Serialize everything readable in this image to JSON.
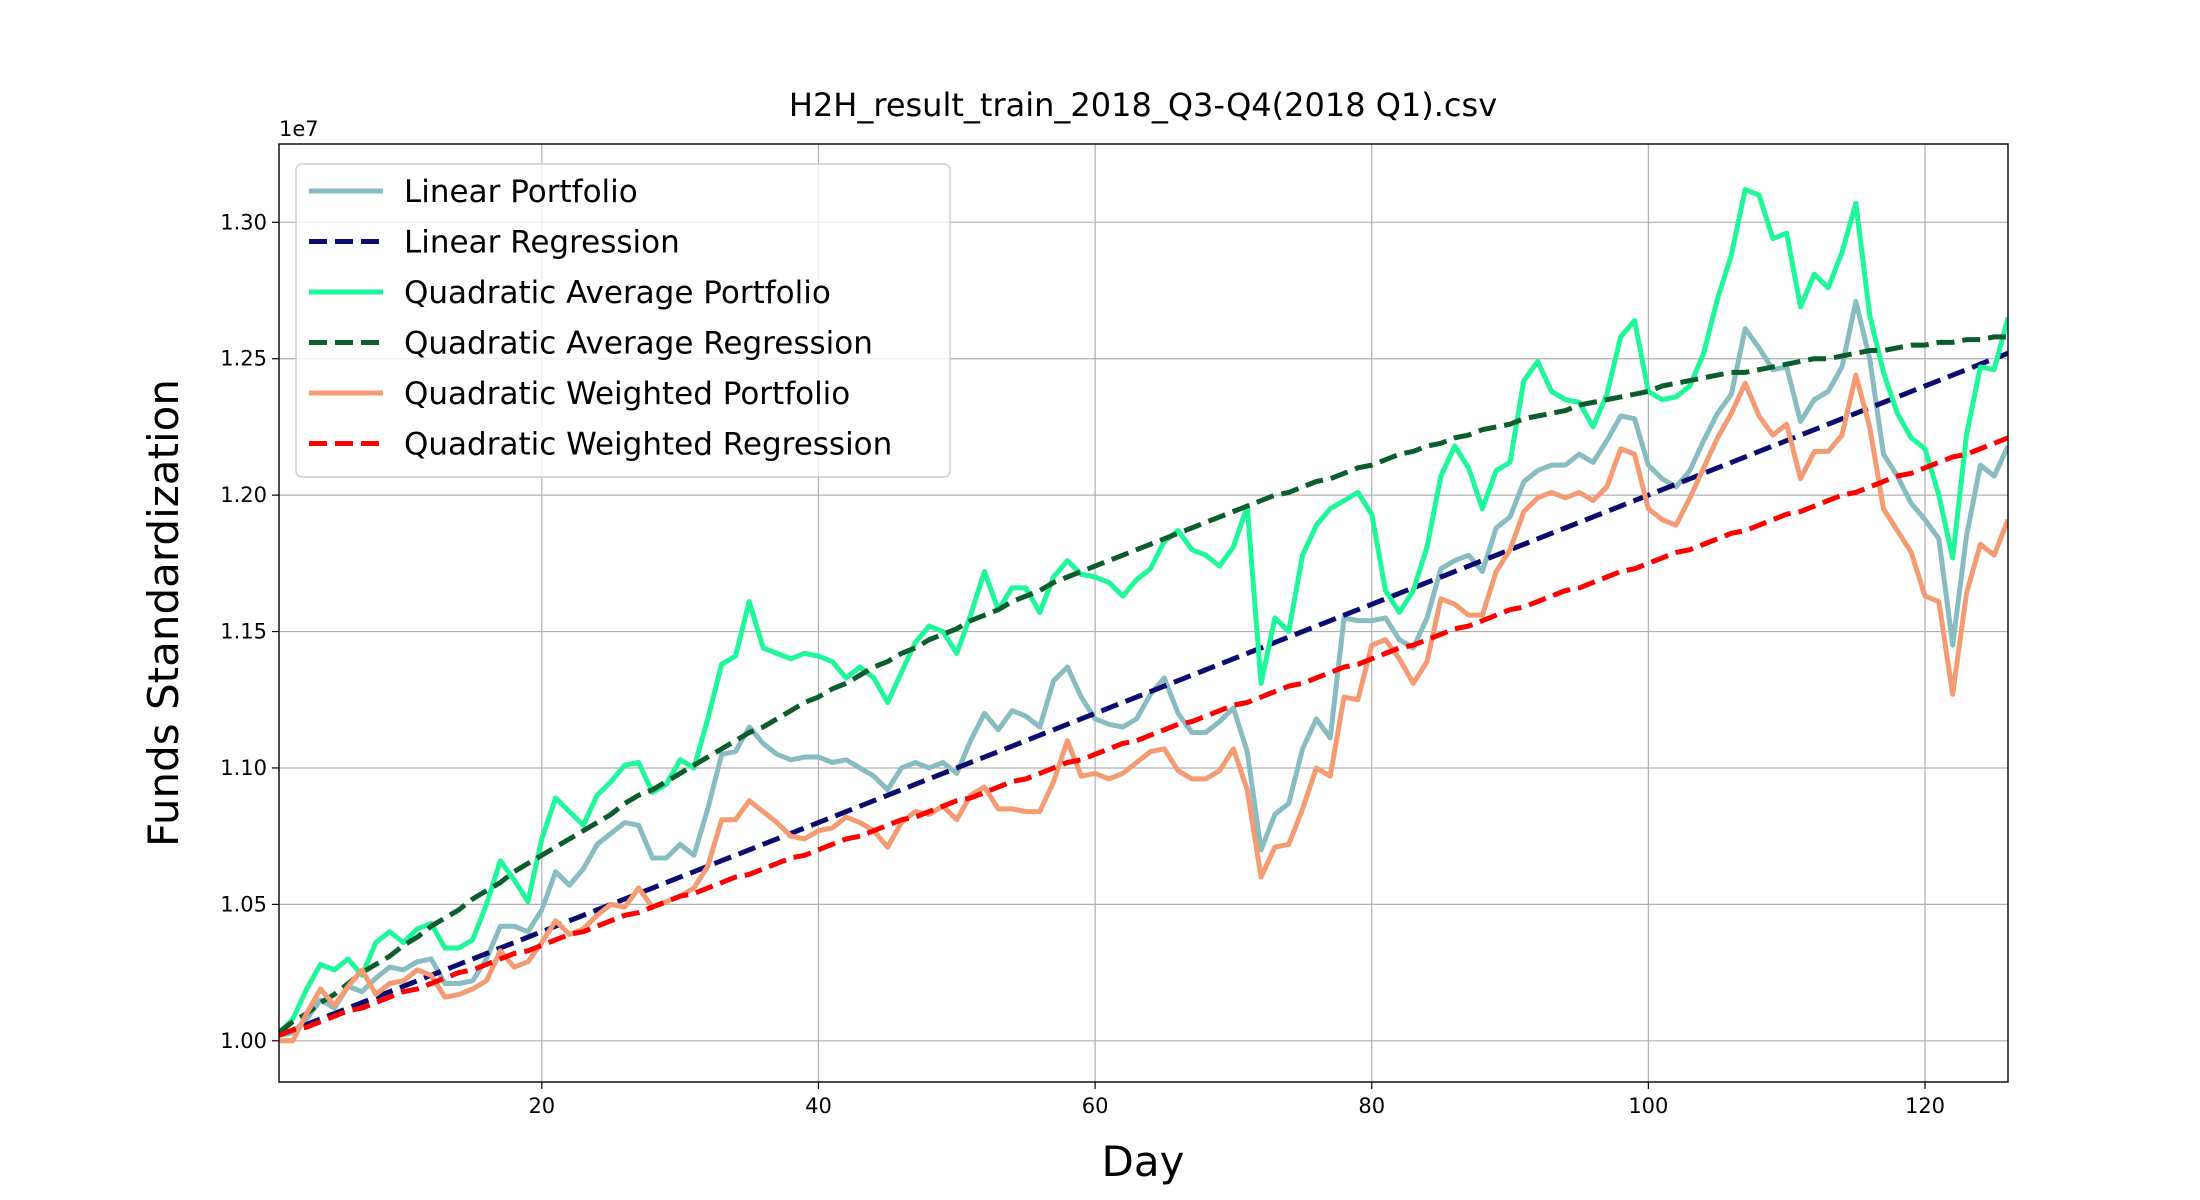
{
  "chart_data": {
    "type": "line",
    "title": "H2H_result_train_2018_Q3-Q4(2018 Q1).csv",
    "x_label": "Day",
    "y_label": "Funds Standardization",
    "y_offset_label": "1e7",
    "x": [
      1,
      2,
      3,
      4,
      5,
      6,
      7,
      8,
      9,
      10,
      11,
      12,
      13,
      14,
      15,
      16,
      17,
      18,
      19,
      20,
      21,
      22,
      23,
      24,
      25,
      26,
      27,
      28,
      29,
      30,
      31,
      32,
      33,
      34,
      35,
      36,
      37,
      38,
      39,
      40,
      41,
      42,
      43,
      44,
      45,
      46,
      47,
      48,
      49,
      50,
      51,
      52,
      53,
      54,
      55,
      56,
      57,
      58,
      59,
      60,
      61,
      62,
      63,
      64,
      65,
      66,
      67,
      68,
      69,
      70,
      71,
      72,
      73,
      74,
      75,
      76,
      77,
      78,
      79,
      80,
      81,
      82,
      83,
      84,
      85,
      86,
      87,
      88,
      89,
      90,
      91,
      92,
      93,
      94,
      95,
      96,
      97,
      98,
      99,
      100,
      101,
      102,
      103,
      104,
      105,
      106,
      107,
      108,
      109,
      110,
      111,
      112,
      113,
      114,
      115,
      116,
      117,
      118,
      119,
      120,
      121,
      122,
      123,
      124,
      125,
      126
    ],
    "xlim": [
      1,
      126
    ],
    "xticks": [
      20,
      40,
      60,
      80,
      100,
      120
    ],
    "ylim": [
      0.9849,
      1.3287
    ],
    "yticks": [
      {
        "value": 1,
        "label": "1.00"
      },
      {
        "value": 1.05,
        "label": "1.05"
      },
      {
        "value": 1.1,
        "label": "1.10"
      },
      {
        "value": 1.15,
        "label": "1.15"
      },
      {
        "value": 1.2,
        "label": "1.20"
      },
      {
        "value": 1.25,
        "label": "1.25"
      },
      {
        "value": 1.3,
        "label": "1.30"
      }
    ],
    "grid": true,
    "legend": "upper left",
    "series": [
      {
        "name": "Linear Portfolio",
        "color": "#88bcc0",
        "dashed": false,
        "values": [
          1.002,
          1.003,
          1.008,
          1.015,
          1.012,
          1.02,
          1.018,
          1.023,
          1.027,
          1.026,
          1.029,
          1.03,
          1.021,
          1.021,
          1.022,
          1.03,
          1.042,
          1.042,
          1.04,
          1.048,
          1.062,
          1.057,
          1.063,
          1.072,
          1.076,
          1.08,
          1.079,
          1.067,
          1.067,
          1.072,
          1.068,
          1.085,
          1.105,
          1.106,
          1.115,
          1.109,
          1.105,
          1.103,
          1.104,
          1.104,
          1.102,
          1.103,
          1.1,
          1.097,
          1.092,
          1.1,
          1.102,
          1.1,
          1.102,
          1.098,
          1.11,
          1.12,
          1.114,
          1.121,
          1.119,
          1.115,
          1.132,
          1.137,
          1.126,
          1.118,
          1.116,
          1.115,
          1.118,
          1.127,
          1.133,
          1.12,
          1.113,
          1.113,
          1.117,
          1.122,
          1.106,
          1.07,
          1.083,
          1.087,
          1.107,
          1.118,
          1.111,
          1.155,
          1.154,
          1.154,
          1.155,
          1.147,
          1.144,
          1.155,
          1.173,
          1.176,
          1.178,
          1.172,
          1.188,
          1.192,
          1.205,
          1.209,
          1.211,
          1.211,
          1.215,
          1.212,
          1.22,
          1.229,
          1.228,
          1.211,
          1.206,
          1.203,
          1.209,
          1.22,
          1.23,
          1.237,
          1.261,
          1.254,
          1.246,
          1.247,
          1.227,
          1.235,
          1.238,
          1.247,
          1.271,
          1.25,
          1.215,
          1.207,
          1.197,
          1.191,
          1.184,
          1.145,
          1.185,
          1.211,
          1.207,
          1.218
        ]
      },
      {
        "name": "Linear Regression",
        "color": "#0c0c70",
        "dashed": true,
        "values": [
          1.002,
          1.004,
          1.006,
          1.008,
          1.01,
          1.012,
          1.014,
          1.016,
          1.018,
          1.02,
          1.022,
          1.024,
          1.026,
          1.028,
          1.03,
          1.032,
          1.034,
          1.036,
          1.038,
          1.04,
          1.042,
          1.044,
          1.046,
          1.048,
          1.05,
          1.052,
          1.054,
          1.056,
          1.058,
          1.06,
          1.062,
          1.064,
          1.066,
          1.068,
          1.07,
          1.072,
          1.074,
          1.076,
          1.078,
          1.08,
          1.082,
          1.084,
          1.086,
          1.088,
          1.09,
          1.092,
          1.094,
          1.096,
          1.098,
          1.1,
          1.102,
          1.104,
          1.106,
          1.108,
          1.11,
          1.112,
          1.114,
          1.116,
          1.118,
          1.12,
          1.122,
          1.124,
          1.126,
          1.128,
          1.13,
          1.132,
          1.134,
          1.136,
          1.138,
          1.14,
          1.142,
          1.144,
          1.146,
          1.148,
          1.15,
          1.152,
          1.154,
          1.156,
          1.158,
          1.16,
          1.162,
          1.164,
          1.166,
          1.168,
          1.17,
          1.172,
          1.174,
          1.176,
          1.178,
          1.18,
          1.182,
          1.184,
          1.186,
          1.188,
          1.19,
          1.192,
          1.194,
          1.196,
          1.198,
          1.2,
          1.202,
          1.204,
          1.206,
          1.208,
          1.21,
          1.212,
          1.214,
          1.216,
          1.218,
          1.22,
          1.222,
          1.224,
          1.226,
          1.228,
          1.23,
          1.232,
          1.234,
          1.236,
          1.238,
          1.24,
          1.242,
          1.244,
          1.246,
          1.248,
          1.25,
          1.252
        ]
      },
      {
        "name": "Quadratic Average Portfolio",
        "color": "#1ef79a",
        "dashed": false,
        "values": [
          1.003,
          1.008,
          1.019,
          1.028,
          1.026,
          1.03,
          1.024,
          1.036,
          1.04,
          1.036,
          1.041,
          1.043,
          1.034,
          1.034,
          1.037,
          1.05,
          1.066,
          1.059,
          1.051,
          1.074,
          1.089,
          1.084,
          1.079,
          1.09,
          1.095,
          1.101,
          1.102,
          1.091,
          1.094,
          1.103,
          1.1,
          1.118,
          1.138,
          1.141,
          1.161,
          1.144,
          1.142,
          1.14,
          1.142,
          1.141,
          1.139,
          1.133,
          1.137,
          1.133,
          1.124,
          1.135,
          1.146,
          1.152,
          1.15,
          1.142,
          1.156,
          1.172,
          1.158,
          1.166,
          1.166,
          1.157,
          1.17,
          1.176,
          1.171,
          1.17,
          1.168,
          1.163,
          1.169,
          1.173,
          1.183,
          1.187,
          1.18,
          1.178,
          1.174,
          1.181,
          1.196,
          1.131,
          1.155,
          1.15,
          1.178,
          1.189,
          1.195,
          1.198,
          1.201,
          1.193,
          1.165,
          1.157,
          1.165,
          1.181,
          1.207,
          1.218,
          1.21,
          1.195,
          1.209,
          1.212,
          1.242,
          1.249,
          1.238,
          1.235,
          1.234,
          1.225,
          1.237,
          1.258,
          1.264,
          1.238,
          1.235,
          1.236,
          1.24,
          1.252,
          1.272,
          1.288,
          1.312,
          1.31,
          1.294,
          1.296,
          1.269,
          1.281,
          1.276,
          1.289,
          1.307,
          1.266,
          1.245,
          1.23,
          1.221,
          1.217,
          1.2,
          1.177,
          1.222,
          1.247,
          1.246,
          1.265
        ]
      },
      {
        "name": "Quadratic Average Regression",
        "color": "#0b5d2e",
        "dashed": true,
        "values": [
          1.003,
          1.007,
          1.01,
          1.014,
          1.017,
          1.021,
          1.025,
          1.028,
          1.031,
          1.035,
          1.038,
          1.042,
          1.045,
          1.048,
          1.052,
          1.055,
          1.058,
          1.062,
          1.065,
          1.068,
          1.071,
          1.074,
          1.077,
          1.08,
          1.083,
          1.087,
          1.09,
          1.092,
          1.095,
          1.098,
          1.101,
          1.104,
          1.107,
          1.11,
          1.113,
          1.115,
          1.118,
          1.121,
          1.124,
          1.126,
          1.129,
          1.131,
          1.134,
          1.137,
          1.139,
          1.142,
          1.144,
          1.147,
          1.149,
          1.151,
          1.154,
          1.156,
          1.158,
          1.161,
          1.163,
          1.165,
          1.168,
          1.17,
          1.172,
          1.174,
          1.176,
          1.178,
          1.18,
          1.182,
          1.184,
          1.186,
          1.188,
          1.19,
          1.192,
          1.194,
          1.196,
          1.198,
          1.2,
          1.201,
          1.203,
          1.205,
          1.206,
          1.208,
          1.21,
          1.211,
          1.213,
          1.215,
          1.216,
          1.218,
          1.219,
          1.221,
          1.222,
          1.224,
          1.225,
          1.226,
          1.228,
          1.229,
          1.23,
          1.231,
          1.233,
          1.234,
          1.235,
          1.236,
          1.237,
          1.238,
          1.24,
          1.241,
          1.242,
          1.243,
          1.244,
          1.245,
          1.245,
          1.246,
          1.247,
          1.248,
          1.249,
          1.25,
          1.25,
          1.251,
          1.252,
          1.253,
          1.253,
          1.254,
          1.255,
          1.255,
          1.256,
          1.256,
          1.257,
          1.257,
          1.258,
          1.258
        ]
      },
      {
        "name": "Quadratic Weighted Portfolio",
        "color": "#f59b73",
        "dashed": false,
        "values": [
          1.0,
          1.0,
          1.01,
          1.019,
          1.013,
          1.02,
          1.026,
          1.017,
          1.021,
          1.022,
          1.026,
          1.024,
          1.016,
          1.017,
          1.019,
          1.022,
          1.033,
          1.027,
          1.029,
          1.036,
          1.044,
          1.039,
          1.041,
          1.046,
          1.05,
          1.049,
          1.056,
          1.049,
          1.051,
          1.053,
          1.056,
          1.064,
          1.081,
          1.081,
          1.088,
          1.084,
          1.08,
          1.075,
          1.074,
          1.077,
          1.078,
          1.082,
          1.08,
          1.077,
          1.071,
          1.08,
          1.084,
          1.083,
          1.086,
          1.081,
          1.09,
          1.093,
          1.085,
          1.085,
          1.084,
          1.084,
          1.095,
          1.11,
          1.097,
          1.098,
          1.096,
          1.098,
          1.102,
          1.106,
          1.107,
          1.099,
          1.096,
          1.096,
          1.099,
          1.107,
          1.092,
          1.06,
          1.071,
          1.072,
          1.085,
          1.1,
          1.097,
          1.126,
          1.125,
          1.145,
          1.147,
          1.14,
          1.131,
          1.139,
          1.162,
          1.16,
          1.156,
          1.156,
          1.172,
          1.18,
          1.194,
          1.199,
          1.201,
          1.199,
          1.201,
          1.198,
          1.203,
          1.217,
          1.215,
          1.195,
          1.191,
          1.189,
          1.199,
          1.21,
          1.221,
          1.23,
          1.241,
          1.229,
          1.222,
          1.226,
          1.206,
          1.216,
          1.216,
          1.222,
          1.244,
          1.225,
          1.195,
          1.187,
          1.179,
          1.163,
          1.161,
          1.127,
          1.164,
          1.182,
          1.178,
          1.191
        ]
      },
      {
        "name": "Quadratic Weighted Regression",
        "color": "#ff0000",
        "dashed": true,
        "values": [
          1.002,
          1.004,
          1.005,
          1.007,
          1.009,
          1.011,
          1.012,
          1.014,
          1.016,
          1.018,
          1.019,
          1.021,
          1.023,
          1.025,
          1.026,
          1.028,
          1.03,
          1.032,
          1.033,
          1.035,
          1.037,
          1.039,
          1.04,
          1.042,
          1.044,
          1.046,
          1.047,
          1.049,
          1.051,
          1.053,
          1.054,
          1.056,
          1.058,
          1.06,
          1.061,
          1.063,
          1.065,
          1.067,
          1.068,
          1.07,
          1.072,
          1.074,
          1.075,
          1.077,
          1.079,
          1.081,
          1.082,
          1.084,
          1.086,
          1.088,
          1.089,
          1.091,
          1.093,
          1.095,
          1.096,
          1.098,
          1.1,
          1.102,
          1.103,
          1.105,
          1.107,
          1.109,
          1.11,
          1.112,
          1.114,
          1.116,
          1.117,
          1.119,
          1.121,
          1.123,
          1.124,
          1.126,
          1.128,
          1.13,
          1.131,
          1.133,
          1.135,
          1.137,
          1.138,
          1.14,
          1.142,
          1.144,
          1.145,
          1.147,
          1.149,
          1.151,
          1.152,
          1.154,
          1.156,
          1.158,
          1.159,
          1.161,
          1.163,
          1.165,
          1.166,
          1.168,
          1.17,
          1.172,
          1.173,
          1.175,
          1.177,
          1.179,
          1.18,
          1.182,
          1.184,
          1.186,
          1.187,
          1.189,
          1.191,
          1.193,
          1.194,
          1.196,
          1.198,
          1.2,
          1.201,
          1.203,
          1.205,
          1.207,
          1.208,
          1.21,
          1.212,
          1.214,
          1.215,
          1.217,
          1.219,
          1.221
        ]
      }
    ]
  }
}
